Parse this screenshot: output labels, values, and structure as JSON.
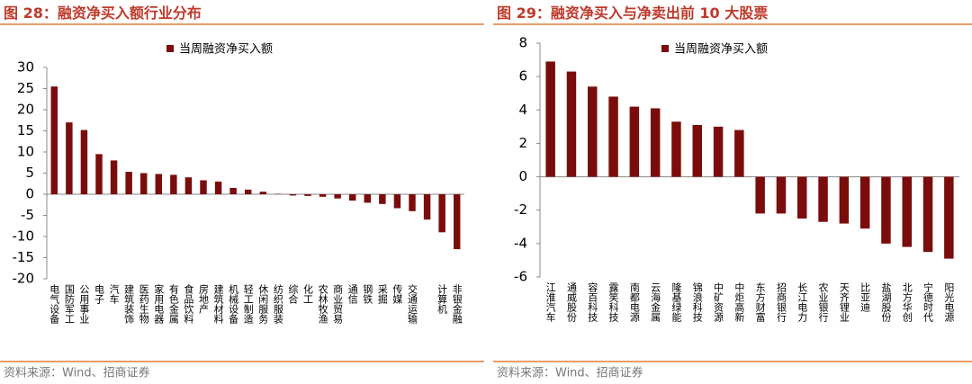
{
  "chart_data": [
    {
      "type": "bar",
      "title": "图 28：融资净买入额行业分布",
      "source": "资料来源：Wind、招商证券",
      "categories": [
        "电气设备",
        "国防军工",
        "公用事业",
        "电子",
        "汽车",
        "建筑装饰",
        "医药生物",
        "家用电器",
        "有色金属",
        "食品饮料",
        "房地产",
        "建筑材料",
        "机械设备",
        "轻工制造",
        "休闲服务",
        "纺织服装",
        "综合",
        "化工",
        "农林牧渔",
        "商业贸易",
        "通信",
        "钢铁",
        "采掘",
        "传媒",
        "交通运输",
        null,
        "计算机",
        "非银金融"
      ],
      "series": [
        {
          "name": "当周融资净买入额",
          "color": "#7b0c0c",
          "values": [
            25.5,
            17,
            15.2,
            9.5,
            8,
            5.3,
            5,
            4.8,
            4.6,
            4,
            3.3,
            3,
            1.5,
            1.1,
            0.6,
            0.1,
            -0.3,
            -0.4,
            -0.6,
            -1,
            -1.5,
            -2,
            -2.3,
            -3.3,
            -4,
            -6,
            -9,
            -13
          ]
        }
      ],
      "ylim": [
        -20,
        30
      ],
      "yticks": [
        -20,
        -15,
        -10,
        -5,
        0,
        5,
        10,
        15,
        20,
        25,
        30
      ]
    },
    {
      "type": "bar",
      "title": "图 29：融资净买入与净卖出前 10 大股票",
      "source": "资料来源：Wind、招商证券",
      "categories": [
        "江淮汽车",
        "通威股份",
        "容百科技",
        "露笑科技",
        "南都电源",
        "云海金属",
        "隆基绿能",
        "锦浪科技",
        "中矿资源",
        "中炬高新",
        "东方财富",
        "招商银行",
        "长江电力",
        "农业银行",
        "天齐锂业",
        "比亚迪",
        "盐湖股份",
        "北方华创",
        "宁德时代",
        "阳光电源"
      ],
      "series": [
        {
          "name": "当周融资净买入额",
          "color": "#7b0c0c",
          "values": [
            6.9,
            6.3,
            5.4,
            4.8,
            4.2,
            4.1,
            3.3,
            3.1,
            3.0,
            2.8,
            -2.2,
            -2.2,
            -2.5,
            -2.7,
            -2.8,
            -3.1,
            -4.0,
            -4.2,
            -4.5,
            -4.9
          ]
        }
      ],
      "ylim": [
        -6,
        8
      ],
      "yticks": [
        -6,
        -4,
        -2,
        0,
        2,
        4,
        6,
        8
      ]
    }
  ]
}
